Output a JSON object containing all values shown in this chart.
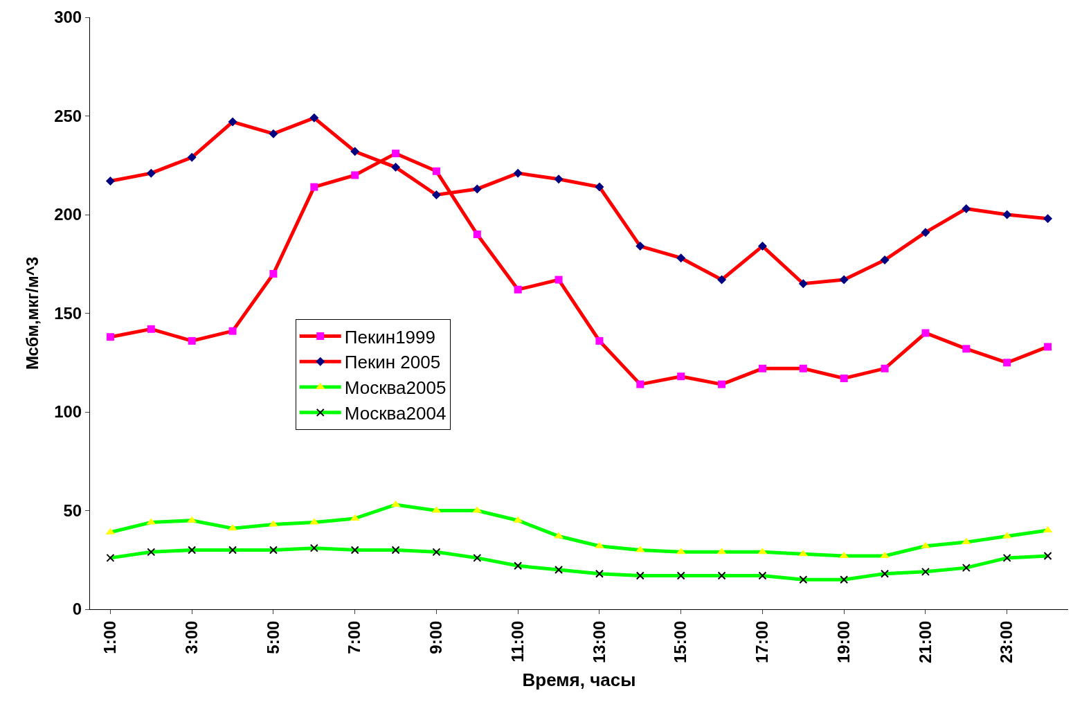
{
  "chart_data": {
    "type": "line",
    "xlabel": "Время, часы",
    "ylabel": "Мсбм,мкг/м^3",
    "categories": [
      "1:00",
      null,
      "3:00",
      null,
      "5:00",
      null,
      "7:00",
      null,
      "9:00",
      null,
      "11:00",
      null,
      "13:00",
      null,
      "15:00",
      null,
      "17:00",
      null,
      "19:00",
      null,
      "21:00",
      null,
      "23:00",
      null
    ],
    "ylim": [
      0,
      300
    ],
    "yticks": [
      0,
      50,
      100,
      150,
      200,
      250,
      300
    ],
    "grid": false,
    "legend": "left",
    "series": [
      {
        "name": "Пекин1999",
        "color": "#ff0000",
        "marker": "square",
        "values": [
          138,
          142,
          136,
          141,
          170,
          214,
          220,
          231,
          222,
          190,
          162,
          167,
          136,
          114,
          118,
          114,
          122,
          122,
          117,
          122,
          140,
          132,
          125,
          133
        ]
      },
      {
        "name": "Пекин 2005",
        "color": "#ff0000",
        "marker": "diamond",
        "values": [
          217,
          221,
          229,
          247,
          241,
          249,
          232,
          224,
          210,
          213,
          221,
          218,
          214,
          184,
          178,
          167,
          184,
          165,
          167,
          177,
          191,
          203,
          200,
          198
        ]
      },
      {
        "name": "Москва2005",
        "color": "#00ff00",
        "marker": "triangle",
        "values": [
          39,
          44,
          45,
          41,
          43,
          44,
          46,
          53,
          50,
          50,
          45,
          37,
          32,
          30,
          29,
          29,
          29,
          28,
          27,
          27,
          32,
          34,
          37,
          40
        ]
      },
      {
        "name": "Москва2004",
        "color": "#00ff00",
        "marker": "cross",
        "values": [
          26,
          29,
          30,
          30,
          30,
          31,
          30,
          30,
          29,
          26,
          22,
          20,
          18,
          17,
          17,
          17,
          17,
          15,
          15,
          18,
          19,
          21,
          26,
          27
        ]
      }
    ]
  }
}
